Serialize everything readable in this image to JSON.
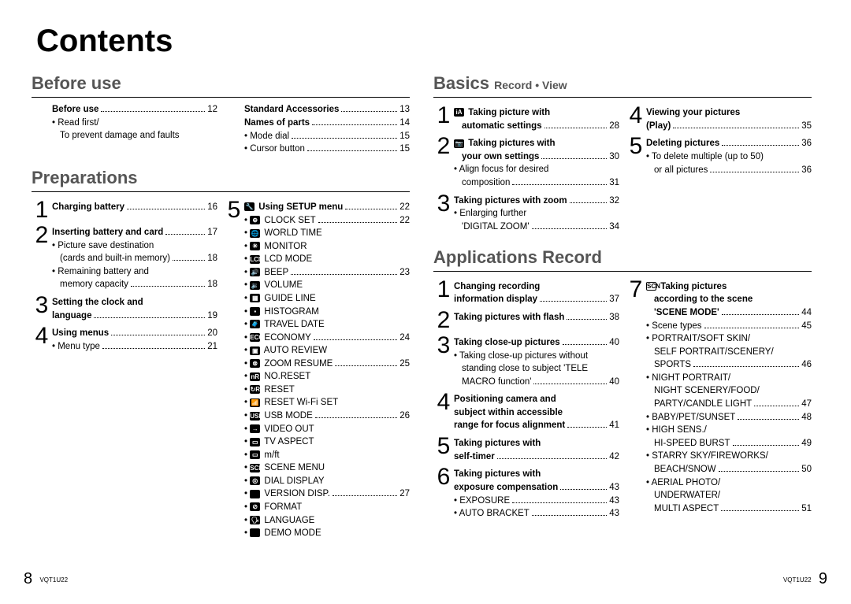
{
  "title": "Contents",
  "footer": {
    "left_page": "8",
    "right_page": "9",
    "code": "VQT1U22"
  },
  "before_use": {
    "header": "Before use",
    "colA": [
      {
        "bold": true,
        "label": "Before use",
        "page": "12"
      },
      {
        "bullet": true,
        "label": "Read first/",
        "nopage": true
      },
      {
        "indent": 1,
        "label": "To prevent damage and faults",
        "nopage": true
      }
    ],
    "colB": [
      {
        "bold": true,
        "label": "Standard Accessories",
        "page": "13"
      },
      {
        "bold": true,
        "label": "Names of parts",
        "page": "14"
      },
      {
        "bullet": true,
        "label": "Mode dial",
        "page": "15"
      },
      {
        "bullet": true,
        "label": "Cursor button",
        "page": "15"
      }
    ]
  },
  "preparations": {
    "header": "Preparations",
    "colA": [
      {
        "num": "1",
        "items": [
          {
            "bold": true,
            "label": "Charging battery",
            "page": "16"
          }
        ]
      },
      {
        "num": "2",
        "items": [
          {
            "bold": true,
            "label": "Inserting battery and card",
            "page": "17"
          },
          {
            "bullet": true,
            "label": "Picture save destination",
            "nopage": true
          },
          {
            "indent": 1,
            "label": "(cards and built-in memory)",
            "page": "18"
          },
          {
            "bullet": true,
            "label": "Remaining battery and",
            "nopage": true
          },
          {
            "indent": 1,
            "label": "memory capacity",
            "page": "18"
          }
        ]
      },
      {
        "num": "3",
        "items": [
          {
            "bold": true,
            "label": "Setting the clock and",
            "nopage": true
          },
          {
            "bold": true,
            "label": "language",
            "page": "19"
          }
        ]
      },
      {
        "num": "4",
        "items": [
          {
            "bold": true,
            "label": "Using menus",
            "page": "20"
          },
          {
            "bullet": true,
            "label": "Menu type",
            "page": "21"
          }
        ]
      }
    ],
    "colB": [
      {
        "num": "5",
        "items": [
          {
            "bold": true,
            "icon": "🔧",
            "label": "Using SETUP menu",
            "page": "22"
          },
          {
            "bullet": true,
            "icon": "⊕",
            "label": "CLOCK SET",
            "page": "22"
          },
          {
            "bullet": true,
            "icon": "🌐",
            "label": "WORLD TIME",
            "nopage": true
          },
          {
            "bullet": true,
            "icon": "✳",
            "label": "MONITOR",
            "nopage": true
          },
          {
            "bullet": true,
            "icon": "LCD",
            "label": "LCD MODE",
            "nopage": true
          },
          {
            "bullet": true,
            "icon": "🔊",
            "label": "BEEP",
            "page": "23"
          },
          {
            "bullet": true,
            "icon": "🔉",
            "label": "VOLUME",
            "nopage": true
          },
          {
            "bullet": true,
            "icon": "▦",
            "label": "GUIDE LINE",
            "nopage": true
          },
          {
            "bullet": true,
            "icon": "▪",
            "label": "HISTOGRAM",
            "nopage": true
          },
          {
            "bullet": true,
            "icon": "🧳",
            "label": "TRAVEL DATE",
            "nopage": true
          },
          {
            "bullet": true,
            "icon": "ECO",
            "label": "ECONOMY",
            "page": "24"
          },
          {
            "bullet": true,
            "icon": "▣",
            "label": "AUTO REVIEW",
            "nopage": true
          },
          {
            "bullet": true,
            "icon": "⊗",
            "label": "ZOOM RESUME",
            "page": "25"
          },
          {
            "bullet": true,
            "icon": "nR",
            "label": "NO.RESET",
            "nopage": true
          },
          {
            "bullet": true,
            "icon": "↻R",
            "label": "RESET",
            "nopage": true
          },
          {
            "bullet": true,
            "icon": "📶",
            "label": "RESET Wi-Fi SET",
            "nopage": true
          },
          {
            "bullet": true,
            "icon": "USB",
            "label": "USB MODE",
            "page": "26"
          },
          {
            "bullet": true,
            "icon": "→",
            "label": "VIDEO OUT",
            "nopage": true
          },
          {
            "bullet": true,
            "icon": "▭",
            "label": "TV ASPECT",
            "nopage": true
          },
          {
            "bullet": true,
            "icon": "▭",
            "label": "m/ft",
            "nopage": true
          },
          {
            "bullet": true,
            "icon": "SCN",
            "label": "SCENE MENU",
            "nopage": true
          },
          {
            "bullet": true,
            "icon": "◎",
            "label": "DIAL DISPLAY",
            "nopage": true
          },
          {
            "bullet": true,
            "icon": "Ver.",
            "label": "VERSION DISP.",
            "page": "27"
          },
          {
            "bullet": true,
            "icon": "⊘",
            "label": "FORMAT",
            "nopage": true
          },
          {
            "bullet": true,
            "icon": "🗣",
            "label": "LANGUAGE",
            "nopage": true
          },
          {
            "bullet": true,
            "icon": "DEMO",
            "label": "DEMO MODE",
            "nopage": true
          }
        ]
      }
    ]
  },
  "basics": {
    "header": "Basics",
    "sub": "Record • View",
    "colA": [
      {
        "num": "1",
        "items": [
          {
            "bold": true,
            "icon": "iA",
            "label": "Taking picture with",
            "nopage": true
          },
          {
            "bold": true,
            "indent": 1,
            "label": "automatic settings",
            "page": "28"
          }
        ]
      },
      {
        "num": "2",
        "items": [
          {
            "bold": true,
            "icon": "📷",
            "label": "Taking pictures with",
            "nopage": true
          },
          {
            "bold": true,
            "indent": 1,
            "label": "your own settings",
            "page": "30"
          },
          {
            "bullet": true,
            "label": "Align focus for desired",
            "nopage": true
          },
          {
            "indent": 1,
            "label": "composition",
            "page": "31"
          }
        ]
      },
      {
        "num": "3",
        "items": [
          {
            "bold": true,
            "label": "Taking pictures with zoom",
            "page": "32"
          },
          {
            "bullet": true,
            "label": "Enlarging further",
            "nopage": true
          },
          {
            "indent": 1,
            "label": "'DIGITAL ZOOM'",
            "page": "34"
          }
        ]
      }
    ],
    "colB": [
      {
        "num": "4",
        "items": [
          {
            "bold": true,
            "label": "Viewing your pictures",
            "nopage": true
          },
          {
            "bold": true,
            "label": "(Play)",
            "page": "35"
          }
        ]
      },
      {
        "num": "5",
        "items": [
          {
            "bold": true,
            "label": "Deleting pictures",
            "page": "36"
          },
          {
            "bullet": true,
            "label": "To delete multiple (up to 50)",
            "nopage": true
          },
          {
            "indent": 1,
            "label": "or all pictures",
            "page": "36"
          }
        ]
      }
    ]
  },
  "applications": {
    "header": "Applications Record",
    "colA": [
      {
        "num": "1",
        "items": [
          {
            "bold": true,
            "label": "Changing recording",
            "nopage": true
          },
          {
            "bold": true,
            "label": "information display",
            "page": "37"
          }
        ]
      },
      {
        "num": "2",
        "items": [
          {
            "bold": true,
            "label": "Taking pictures with flash",
            "page": "38"
          }
        ]
      },
      {
        "num": "3",
        "items": [
          {
            "bold": true,
            "label": "Taking close-up pictures",
            "page": "40"
          },
          {
            "bullet": true,
            "label": "Taking close-up pictures without",
            "nopage": true
          },
          {
            "indent": 1,
            "label": "standing close to subject 'TELE",
            "nopage": true
          },
          {
            "indent": 1,
            "label": "MACRO function'",
            "page": "40"
          }
        ]
      },
      {
        "num": "4",
        "items": [
          {
            "bold": true,
            "label": "Positioning camera and",
            "nopage": true
          },
          {
            "bold": true,
            "label": "subject within accessible",
            "nopage": true
          },
          {
            "bold": true,
            "label": "range for focus alignment",
            "page": "41"
          }
        ]
      },
      {
        "num": "5",
        "items": [
          {
            "bold": true,
            "label": "Taking pictures with",
            "nopage": true
          },
          {
            "bold": true,
            "label": "self-timer",
            "page": "42"
          }
        ]
      },
      {
        "num": "6",
        "items": [
          {
            "bold": true,
            "label": "Taking pictures with",
            "nopage": true
          },
          {
            "bold": true,
            "label": "exposure compensation",
            "page": "43"
          },
          {
            "bullet": true,
            "label": "EXPOSURE",
            "page": "43"
          },
          {
            "bullet": true,
            "label": "AUTO BRACKET",
            "page": "43"
          }
        ]
      }
    ],
    "colB": [
      {
        "num": "7",
        "items": [
          {
            "bold": true,
            "icon": "SCN",
            "outline": true,
            "label": "Taking pictures",
            "nopage": true
          },
          {
            "bold": true,
            "indent": 1,
            "label": "according to the scene",
            "nopage": true
          },
          {
            "bold": true,
            "indent": 1,
            "label": "'SCENE MODE'",
            "page": "44"
          },
          {
            "bullet": true,
            "label": "Scene types",
            "page": "45"
          },
          {
            "bullet": true,
            "label": "PORTRAIT/SOFT SKIN/",
            "nopage": true
          },
          {
            "indent": 1,
            "label": "SELF PORTRAIT/SCENERY/",
            "nopage": true
          },
          {
            "indent": 1,
            "label": "SPORTS",
            "page": "46"
          },
          {
            "bullet": true,
            "label": "NIGHT PORTRAIT/",
            "nopage": true
          },
          {
            "indent": 1,
            "label": "NIGHT SCENERY/FOOD/",
            "nopage": true
          },
          {
            "indent": 1,
            "label": "PARTY/CANDLE LIGHT",
            "page": "47"
          },
          {
            "bullet": true,
            "label": "BABY/PET/SUNSET",
            "page": "48"
          },
          {
            "bullet": true,
            "label": "HIGH SENS./",
            "nopage": true
          },
          {
            "indent": 1,
            "label": "HI-SPEED BURST",
            "page": "49"
          },
          {
            "bullet": true,
            "label": "STARRY SKY/FIREWORKS/",
            "nopage": true
          },
          {
            "indent": 1,
            "label": "BEACH/SNOW",
            "page": "50"
          },
          {
            "bullet": true,
            "label": "AERIAL PHOTO/",
            "nopage": true
          },
          {
            "indent": 1,
            "label": "UNDERWATER/",
            "nopage": true
          },
          {
            "indent": 1,
            "label": "MULTI ASPECT",
            "page": "51"
          }
        ]
      }
    ]
  }
}
